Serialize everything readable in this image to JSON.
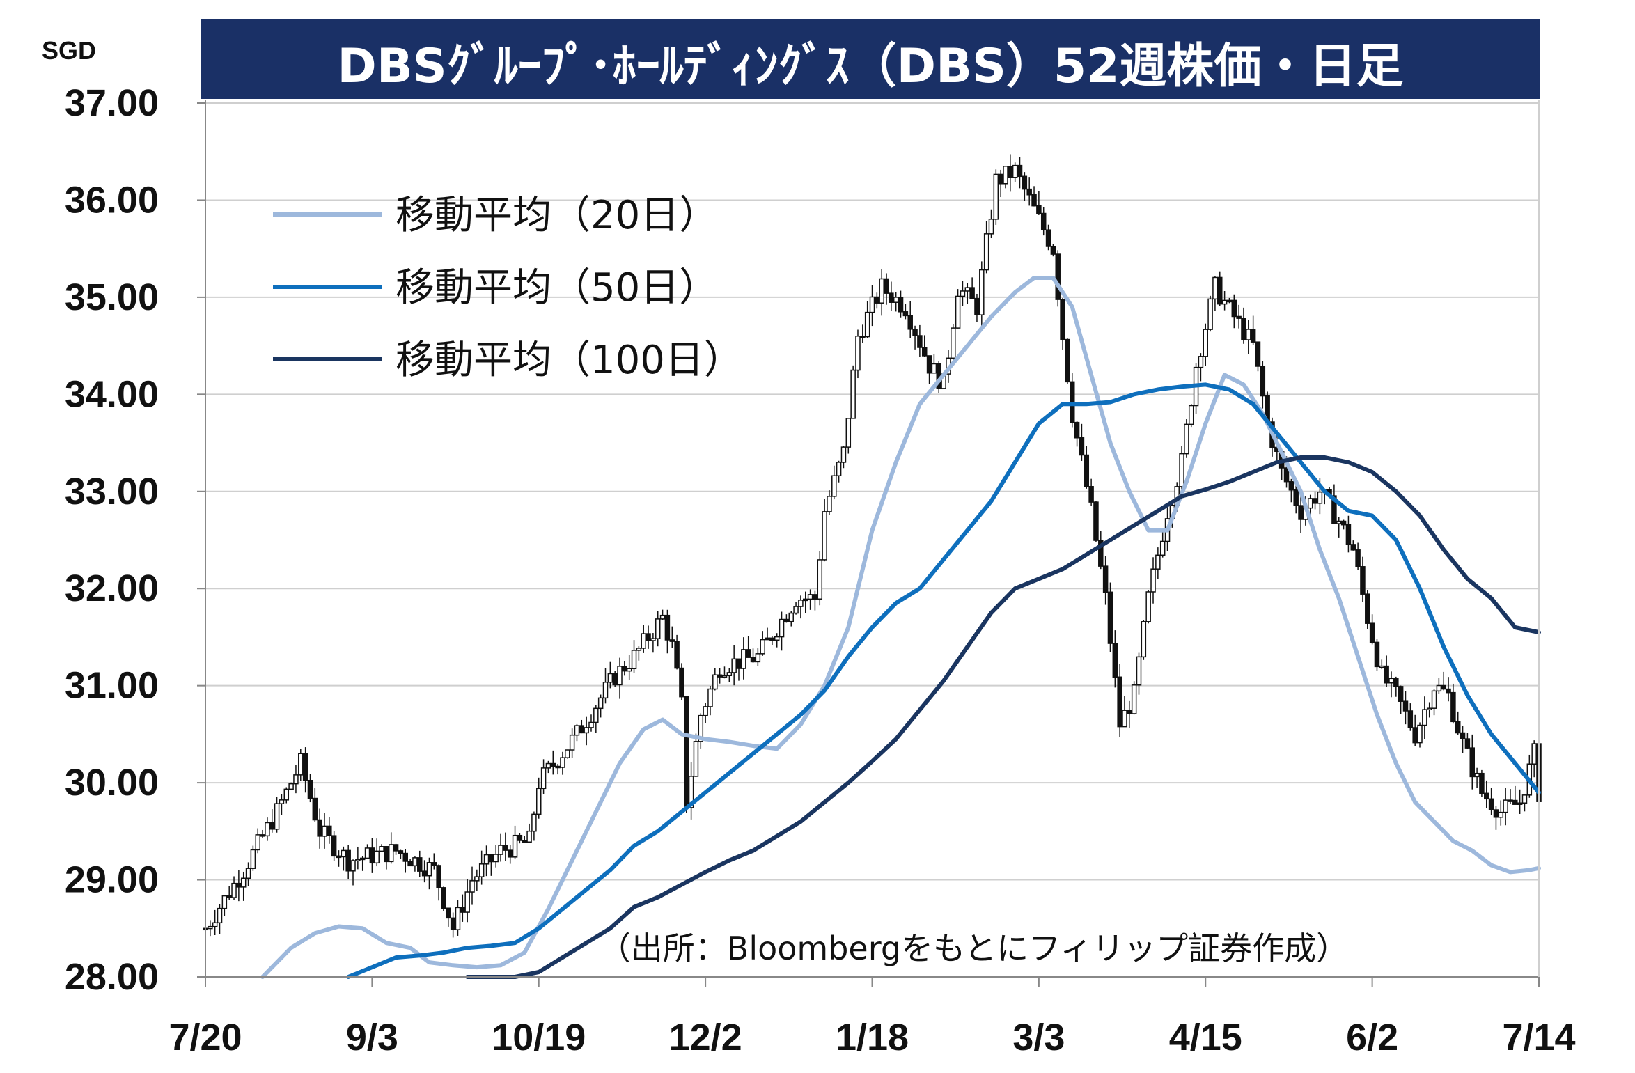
{
  "chart_data": {
    "type": "candlestick",
    "title": "DBSｸﾞﾙｰﾌﾟ･ﾎｰﾙﾃﾞｨﾝｸﾞｽ（DBS）52週株価・日足",
    "unit_label": "SGD",
    "source_note": "（出所：Bloombergをもとにフィリップ証券作成）",
    "ylim": [
      28,
      37
    ],
    "y_ticks": [
      "37.00",
      "36.00",
      "35.00",
      "34.00",
      "33.00",
      "32.00",
      "31.00",
      "30.00",
      "29.00",
      "28.00"
    ],
    "x_ticks": [
      "7/20",
      "9/3",
      "10/19",
      "12/2",
      "1/18",
      "3/3",
      "4/15",
      "6/2",
      "7/14"
    ],
    "grid": true,
    "legend_position": "top-left",
    "series": [
      {
        "name": "移動平均（20日）",
        "color": "#9db8dc",
        "points": [
          [
            12,
            28.0
          ],
          [
            18,
            28.3
          ],
          [
            23,
            28.45
          ],
          [
            28,
            28.52
          ],
          [
            33,
            28.5
          ],
          [
            38,
            28.35
          ],
          [
            43,
            28.3
          ],
          [
            47,
            28.15
          ],
          [
            52,
            28.12
          ],
          [
            57,
            28.1
          ],
          [
            62,
            28.12
          ],
          [
            67,
            28.25
          ],
          [
            72,
            28.7
          ],
          [
            77,
            29.2
          ],
          [
            82,
            29.7
          ],
          [
            87,
            30.2
          ],
          [
            92,
            30.55
          ],
          [
            96,
            30.65
          ],
          [
            100,
            30.5
          ],
          [
            105,
            30.45
          ],
          [
            110,
            30.42
          ],
          [
            115,
            30.38
          ],
          [
            120,
            30.35
          ],
          [
            125,
            30.6
          ],
          [
            130,
            31.0
          ],
          [
            135,
            31.6
          ],
          [
            140,
            32.6
          ],
          [
            145,
            33.3
          ],
          [
            150,
            33.9
          ],
          [
            155,
            34.2
          ],
          [
            160,
            34.5
          ],
          [
            165,
            34.8
          ],
          [
            170,
            35.05
          ],
          [
            174,
            35.2
          ],
          [
            178,
            35.2
          ],
          [
            182,
            34.9
          ],
          [
            186,
            34.2
          ],
          [
            190,
            33.5
          ],
          [
            194,
            33.0
          ],
          [
            198,
            32.6
          ],
          [
            202,
            32.6
          ],
          [
            206,
            33.1
          ],
          [
            210,
            33.7
          ],
          [
            214,
            34.2
          ],
          [
            218,
            34.1
          ],
          [
            222,
            33.8
          ],
          [
            226,
            33.4
          ],
          [
            230,
            33.0
          ],
          [
            234,
            32.4
          ],
          [
            238,
            31.9
          ],
          [
            242,
            31.3
          ],
          [
            246,
            30.7
          ],
          [
            250,
            30.2
          ],
          [
            254,
            29.8
          ],
          [
            258,
            29.6
          ],
          [
            262,
            29.4
          ],
          [
            266,
            29.3
          ],
          [
            270,
            29.15
          ],
          [
            274,
            29.08
          ],
          [
            278,
            29.1
          ],
          [
            280,
            29.12
          ]
        ]
      },
      {
        "name": "移動平均（50日）",
        "color": "#0e6fbd",
        "points": [
          [
            30,
            28.0
          ],
          [
            35,
            28.1
          ],
          [
            40,
            28.2
          ],
          [
            45,
            28.22
          ],
          [
            50,
            28.25
          ],
          [
            55,
            28.3
          ],
          [
            60,
            28.32
          ],
          [
            65,
            28.35
          ],
          [
            70,
            28.5
          ],
          [
            75,
            28.7
          ],
          [
            80,
            28.9
          ],
          [
            85,
            29.1
          ],
          [
            90,
            29.35
          ],
          [
            95,
            29.5
          ],
          [
            100,
            29.7
          ],
          [
            105,
            29.9
          ],
          [
            110,
            30.1
          ],
          [
            115,
            30.3
          ],
          [
            120,
            30.5
          ],
          [
            125,
            30.7
          ],
          [
            130,
            30.95
          ],
          [
            135,
            31.3
          ],
          [
            140,
            31.6
          ],
          [
            145,
            31.85
          ],
          [
            150,
            32.0
          ],
          [
            155,
            32.3
          ],
          [
            160,
            32.6
          ],
          [
            165,
            32.9
          ],
          [
            170,
            33.3
          ],
          [
            175,
            33.7
          ],
          [
            180,
            33.9
          ],
          [
            185,
            33.9
          ],
          [
            190,
            33.92
          ],
          [
            195,
            34.0
          ],
          [
            200,
            34.05
          ],
          [
            205,
            34.08
          ],
          [
            210,
            34.1
          ],
          [
            215,
            34.05
          ],
          [
            220,
            33.9
          ],
          [
            225,
            33.6
          ],
          [
            230,
            33.3
          ],
          [
            235,
            33.0
          ],
          [
            240,
            32.8
          ],
          [
            245,
            32.75
          ],
          [
            250,
            32.5
          ],
          [
            255,
            32.0
          ],
          [
            260,
            31.4
          ],
          [
            265,
            30.9
          ],
          [
            270,
            30.5
          ],
          [
            275,
            30.2
          ],
          [
            280,
            29.9
          ]
        ]
      },
      {
        "name": "移動平均（100日）",
        "color": "#1a3560",
        "points": [
          [
            55,
            28.0
          ],
          [
            60,
            28.0
          ],
          [
            65,
            28.0
          ],
          [
            70,
            28.05
          ],
          [
            75,
            28.2
          ],
          [
            80,
            28.35
          ],
          [
            85,
            28.5
          ],
          [
            90,
            28.72
          ],
          [
            95,
            28.82
          ],
          [
            100,
            28.95
          ],
          [
            105,
            29.08
          ],
          [
            110,
            29.2
          ],
          [
            115,
            29.3
          ],
          [
            120,
            29.45
          ],
          [
            125,
            29.6
          ],
          [
            130,
            29.8
          ],
          [
            135,
            30.0
          ],
          [
            140,
            30.22
          ],
          [
            145,
            30.45
          ],
          [
            150,
            30.75
          ],
          [
            155,
            31.05
          ],
          [
            160,
            31.4
          ],
          [
            165,
            31.75
          ],
          [
            170,
            32.0
          ],
          [
            175,
            32.1
          ],
          [
            180,
            32.2
          ],
          [
            185,
            32.35
          ],
          [
            190,
            32.5
          ],
          [
            195,
            32.65
          ],
          [
            200,
            32.8
          ],
          [
            205,
            32.95
          ],
          [
            210,
            33.02
          ],
          [
            215,
            33.1
          ],
          [
            220,
            33.2
          ],
          [
            225,
            33.3
          ],
          [
            230,
            33.35
          ],
          [
            235,
            33.35
          ],
          [
            240,
            33.3
          ],
          [
            245,
            33.2
          ],
          [
            250,
            33.0
          ],
          [
            255,
            32.75
          ],
          [
            260,
            32.4
          ],
          [
            265,
            32.1
          ],
          [
            270,
            31.9
          ],
          [
            275,
            31.6
          ],
          [
            280,
            31.55
          ]
        ]
      }
    ]
  }
}
